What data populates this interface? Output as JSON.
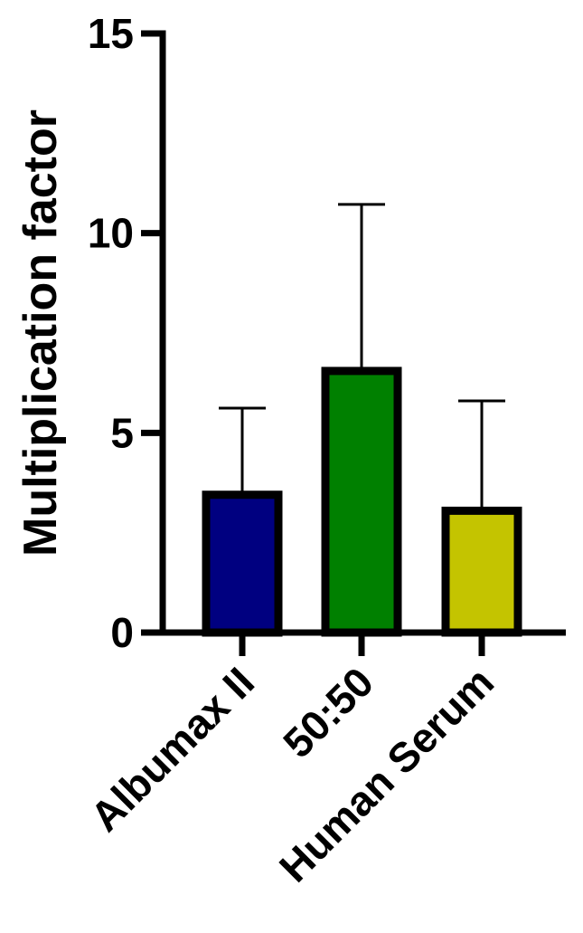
{
  "chart_data": {
    "type": "bar",
    "title": "",
    "xlabel": "",
    "ylabel": "Multiplication factor",
    "ylim": [
      0,
      15
    ],
    "yticks": [
      "0",
      "5",
      "10",
      "15"
    ],
    "ytick_values": [
      0,
      5,
      10,
      15
    ],
    "grid": false,
    "legend": "none",
    "categories": [
      "Albumax II",
      "50:50",
      "Human Serum"
    ],
    "values": [
      3.45,
      6.55,
      3.05
    ],
    "error_upper": [
      5.62,
      10.72,
      5.8
    ],
    "colors": [
      "#000080",
      "#008000",
      "#c4c400"
    ],
    "edge_color": "#000000"
  }
}
